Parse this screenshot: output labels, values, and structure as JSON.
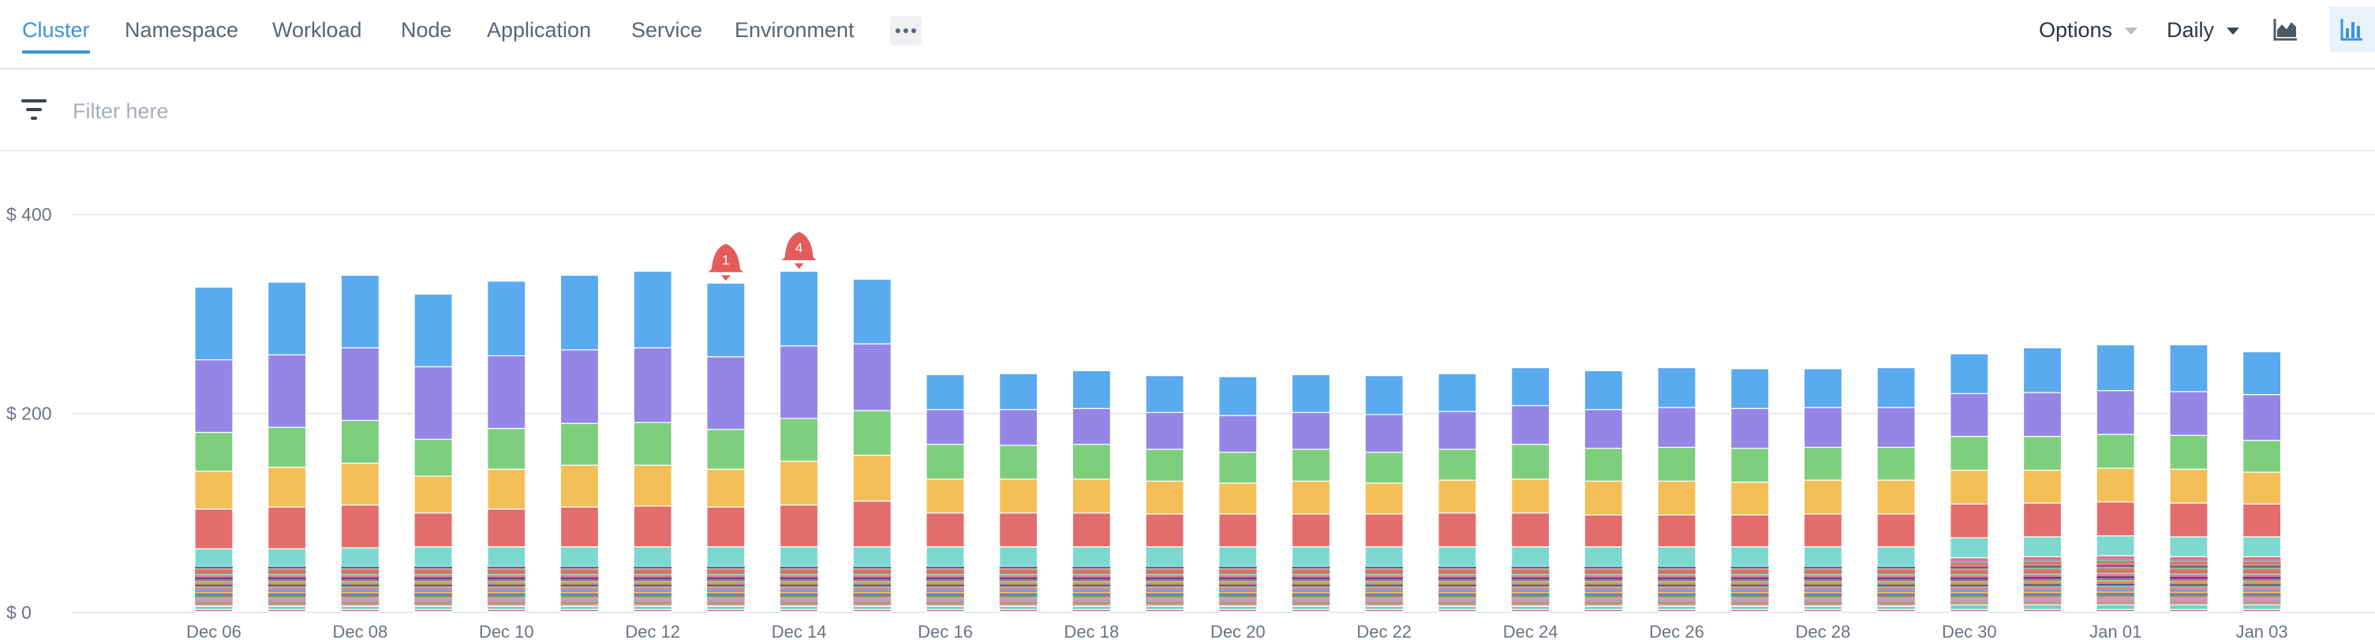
{
  "nav": {
    "tabs": [
      {
        "label": "Cluster",
        "active": true
      },
      {
        "label": "Namespace",
        "active": false
      },
      {
        "label": "Workload",
        "active": false
      },
      {
        "label": "Node",
        "active": false
      },
      {
        "label": "Application",
        "active": false
      },
      {
        "label": "Service",
        "active": false
      },
      {
        "label": "Environment",
        "active": false
      }
    ],
    "more_icon": "more-horizontal-icon"
  },
  "controls": {
    "options_label": "Options",
    "period_label": "Daily",
    "area_chart_icon": "area-chart-icon",
    "bar_chart_icon": "bar-chart-icon",
    "bar_chart_active": true
  },
  "filter": {
    "placeholder": "Filter here",
    "value": "",
    "icon": "filter-icon"
  },
  "colors": {
    "accent": "#3b93df",
    "alert": "#e55b5b"
  },
  "chart_data": {
    "type": "bar",
    "stacked": true,
    "categories": [
      "Dec 06",
      "Dec 07",
      "Dec 08",
      "Dec 09",
      "Dec 10",
      "Dec 11",
      "Dec 12",
      "Dec 13",
      "Dec 14",
      "Dec 15",
      "Dec 16",
      "Dec 17",
      "Dec 18",
      "Dec 19",
      "Dec 20",
      "Dec 21",
      "Dec 22",
      "Dec 23",
      "Dec 24",
      "Dec 25",
      "Dec 26",
      "Dec 27",
      "Dec 28",
      "Dec 29",
      "Dec 30",
      "Dec 31",
      "Jan 01",
      "Jan 02",
      "Jan 03"
    ],
    "x_tick_labels": [
      "Dec 06",
      "Dec 08",
      "Dec 10",
      "Dec 12",
      "Dec 14",
      "Dec 16",
      "Dec 18",
      "Dec 20",
      "Dec 22",
      "Dec 24",
      "Dec 26",
      "Dec 28",
      "Dec 30",
      "Jan 01",
      "Jan 03"
    ],
    "y_ticks": [
      {
        "value": 0,
        "label": "$ 0"
      },
      {
        "value": 200,
        "label": "$ 200"
      },
      {
        "value": 400,
        "label": "$ 400"
      }
    ],
    "ylim": [
      0,
      425
    ],
    "grid": true,
    "small_segments": {
      "colors": [
        "#bcd4f0",
        "#e08a5a",
        "#6fcfc3",
        "#c9a0e3",
        "#f2a0c5",
        "#5fae6a",
        "#4f7fd6",
        "#f5c15a",
        "#6aa8e8",
        "#ef8a8a",
        "#7ad1c4",
        "#3d5aa8",
        "#d7a24a",
        "#a5d86f",
        "#8b6bd1",
        "#2f4a7a",
        "#f07aa8",
        "#9ad0ef",
        "#c87a3a",
        "#e86f6f",
        "#78c9a9",
        "#5b5b8f"
      ],
      "late_extra_colors": [
        "#f07aa8",
        "#c88a4a",
        "#6fcfc3",
        "#d779c2"
      ],
      "late_from_index": 24
    },
    "series": [
      {
        "color": "#a7acb3",
        "values": [
          1,
          1,
          1,
          1,
          1,
          1,
          1,
          1,
          1,
          1,
          1,
          1,
          1,
          1,
          1,
          1,
          1,
          1,
          1,
          1,
          1,
          1,
          1,
          1,
          1,
          1,
          1,
          1,
          1
        ]
      },
      {
        "color": "#e05a5a",
        "values": [
          2,
          2,
          2,
          2,
          2,
          2,
          2,
          2,
          2,
          2,
          2,
          2,
          2,
          2,
          2,
          2,
          2,
          2,
          2,
          2,
          2,
          2,
          2,
          2,
          2,
          2,
          2,
          2,
          2
        ]
      },
      {
        "color": "#6acfc7",
        "values": [
          3,
          3,
          3,
          3,
          3,
          3,
          3,
          3,
          3,
          3,
          3,
          3,
          3,
          3,
          3,
          3,
          3,
          3,
          3,
          3,
          3,
          3,
          3,
          3,
          5,
          5,
          5,
          5,
          5
        ]
      },
      {
        "color": "#e46b6b",
        "values": [
          40,
          40,
          40,
          40,
          40,
          40,
          40,
          40,
          40,
          40,
          40,
          40,
          40,
          40,
          40,
          40,
          40,
          40,
          40,
          40,
          40,
          40,
          40,
          40,
          47,
          48,
          49,
          48,
          48
        ]
      },
      {
        "color": "#7dd9cf",
        "values": [
          18,
          18,
          19,
          20,
          20,
          20,
          20,
          20,
          20,
          20,
          20,
          20,
          20,
          20,
          20,
          20,
          20,
          20,
          20,
          20,
          20,
          20,
          20,
          20,
          20,
          20,
          20,
          20,
          20
        ]
      },
      {
        "color": "#e36d6d",
        "values": [
          40,
          42,
          43,
          34,
          38,
          40,
          41,
          40,
          42,
          46,
          34,
          34,
          34,
          33,
          33,
          33,
          33,
          34,
          34,
          32,
          32,
          32,
          33,
          33,
          34,
          34,
          34,
          34,
          33
        ]
      },
      {
        "color": "#f5bf57",
        "values": [
          38,
          40,
          42,
          37,
          40,
          42,
          41,
          38,
          44,
          46,
          34,
          34,
          34,
          33,
          31,
          33,
          31,
          33,
          34,
          34,
          34,
          33,
          34,
          34,
          34,
          33,
          34,
          34,
          32
        ]
      },
      {
        "color": "#7dcf7d",
        "values": [
          39,
          40,
          43,
          37,
          41,
          42,
          43,
          40,
          43,
          45,
          35,
          34,
          35,
          32,
          31,
          32,
          31,
          31,
          35,
          33,
          34,
          34,
          33,
          33,
          34,
          34,
          34,
          34,
          32
        ]
      },
      {
        "color": "#9586e6",
        "values": [
          73,
          73,
          73,
          73,
          73,
          74,
          75,
          73,
          73,
          67,
          35,
          36,
          36,
          37,
          37,
          37,
          38,
          38,
          39,
          39,
          40,
          40,
          40,
          40,
          43,
          44,
          44,
          44,
          46
        ]
      },
      {
        "color": "#5aaaf0",
        "values": [
          73,
          73,
          73,
          73,
          75,
          75,
          77,
          74,
          75,
          65,
          35,
          36,
          38,
          37,
          39,
          38,
          39,
          38,
          38,
          39,
          40,
          40,
          39,
          40,
          40,
          45,
          46,
          47,
          43
        ]
      }
    ],
    "annotations": [
      {
        "category": "Dec 13",
        "label": "1",
        "icon": "bell-icon"
      },
      {
        "category": "Dec 14",
        "label": "4",
        "icon": "bell-icon"
      }
    ]
  }
}
